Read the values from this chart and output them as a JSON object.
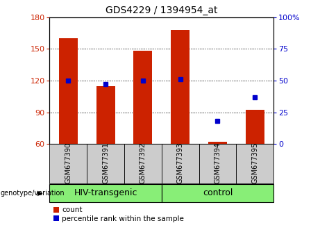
{
  "title": "GDS4229 / 1394954_at",
  "samples": [
    "GSM677390",
    "GSM677391",
    "GSM677392",
    "GSM677393",
    "GSM677394",
    "GSM677395"
  ],
  "counts": [
    160,
    115,
    148,
    168,
    62,
    92
  ],
  "percentiles": [
    50,
    47,
    50,
    51,
    18,
    37
  ],
  "ylim_left": [
    60,
    180
  ],
  "ylim_right": [
    0,
    100
  ],
  "yticks_left": [
    60,
    90,
    120,
    150,
    180
  ],
  "yticks_right": [
    0,
    25,
    50,
    75,
    100
  ],
  "bar_color": "#cc2200",
  "dot_color": "#0000cc",
  "group1_label": "HIV-transgenic",
  "group2_label": "control",
  "group1_indices": [
    0,
    1,
    2
  ],
  "group2_indices": [
    3,
    4,
    5
  ],
  "group_bg_color": "#88ee77",
  "tick_bg_color": "#cccccc",
  "legend_count_label": "count",
  "legend_pct_label": "percentile rank within the sample",
  "bar_width": 0.5,
  "title_fontsize": 10,
  "tick_fontsize": 7,
  "group_fontsize": 9,
  "legend_fontsize": 7.5,
  "axis_tick_fontsize": 8
}
